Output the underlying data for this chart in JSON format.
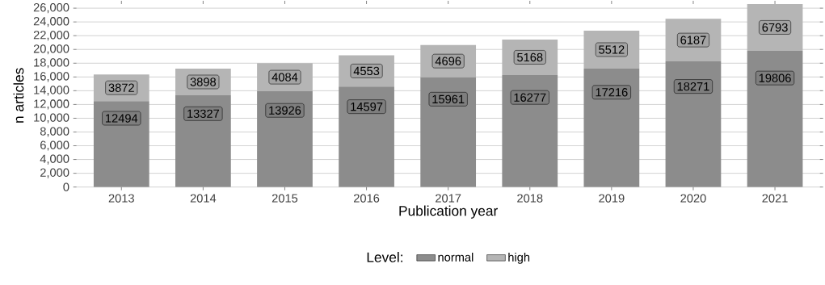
{
  "chart_data": {
    "type": "bar",
    "stacked": true,
    "xlabel": "Publication year",
    "ylabel": "n articles",
    "legend_title": "Level:",
    "legend": "bottom",
    "grid": "y",
    "data_labels": true,
    "categories": [
      "2013",
      "2014",
      "2015",
      "2016",
      "2017",
      "2018",
      "2019",
      "2020",
      "2021"
    ],
    "series": [
      {
        "name": "normal",
        "color": "#8c8c8c",
        "values": [
          12494,
          13327,
          13926,
          14597,
          15961,
          16277,
          17216,
          18271,
          19806
        ]
      },
      {
        "name": "high",
        "color": "#b5b5b5",
        "values": [
          3872,
          3898,
          4084,
          4553,
          4696,
          5168,
          5512,
          6187,
          6793
        ]
      }
    ],
    "ylim": [
      0,
      26600
    ],
    "yticks": [
      {
        "value": 0,
        "label": "0"
      },
      {
        "value": 2000,
        "label": "2,000"
      },
      {
        "value": 4000,
        "label": "4,000"
      },
      {
        "value": 6000,
        "label": "6,000"
      },
      {
        "value": 8000,
        "label": "8,000"
      },
      {
        "value": 10000,
        "label": "10,000"
      },
      {
        "value": 12000,
        "label": "12,000"
      },
      {
        "value": 14000,
        "label": "14,000"
      },
      {
        "value": 16000,
        "label": "16,000"
      },
      {
        "value": 18000,
        "label": "18,000"
      },
      {
        "value": 20000,
        "label": "20,000"
      },
      {
        "value": 22000,
        "label": "22,000"
      },
      {
        "value": 24000,
        "label": "24,000"
      },
      {
        "value": 26000,
        "label": "26,000"
      }
    ]
  }
}
